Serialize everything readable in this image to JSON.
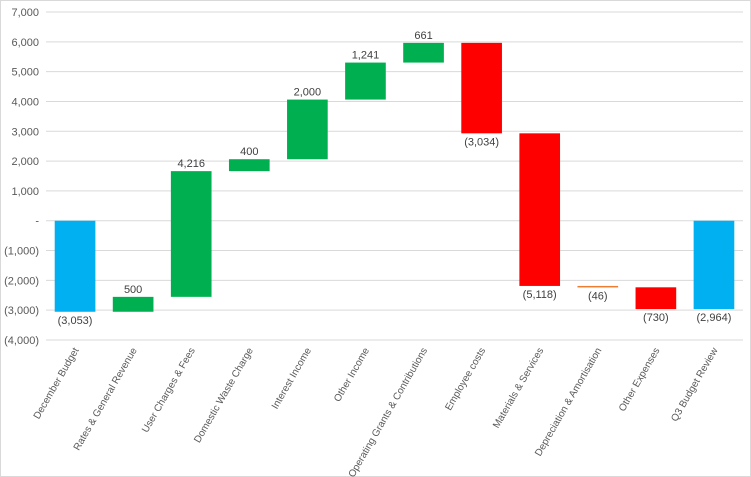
{
  "chart_data": {
    "type": "bar",
    "subtype": "waterfall",
    "title": "",
    "xlabel": "",
    "ylabel": "",
    "ylim": [
      -4000,
      7000
    ],
    "y_tick_step": 1000,
    "y_tick_labels": [
      "(4,000)",
      "(3,000)",
      "(2,000)",
      "(1,000)",
      "-",
      "1,000",
      "2,000",
      "3,000",
      "4,000",
      "5,000",
      "6,000",
      "7,000"
    ],
    "grid": true,
    "legend": "none",
    "categories": [
      "December Budget",
      "Rates & General Revenue",
      "User Charges & Fees",
      "Domestic Waste Charge",
      "Interest Income",
      "Other Income",
      "Operating Grants & Contributions",
      "Employee costs",
      "Materials & Services",
      "Depreciation & Amortisation",
      "Other Expenses",
      "Q3 Budget Review"
    ],
    "values": [
      -3053,
      500,
      4216,
      400,
      2000,
      1241,
      661,
      -3034,
      -5118,
      -46,
      -730,
      -2964
    ],
    "data_labels": [
      "(3,053)",
      "500",
      "4,216",
      "400",
      "2,000",
      "1,241",
      "661",
      "(3,034)",
      "(5,118)",
      "(46)",
      "(730)",
      "(2,964)"
    ],
    "bar_kinds": [
      "total",
      "delta",
      "delta",
      "delta",
      "delta",
      "delta",
      "delta",
      "delta",
      "delta",
      "delta",
      "delta",
      "total"
    ],
    "colors": {
      "total": "#00b0f0",
      "increase": "#00b050",
      "decrease": "#ff0000",
      "small_decrease": "#ed7d31",
      "grid": "#d9d9d9",
      "text": "#595959"
    }
  }
}
